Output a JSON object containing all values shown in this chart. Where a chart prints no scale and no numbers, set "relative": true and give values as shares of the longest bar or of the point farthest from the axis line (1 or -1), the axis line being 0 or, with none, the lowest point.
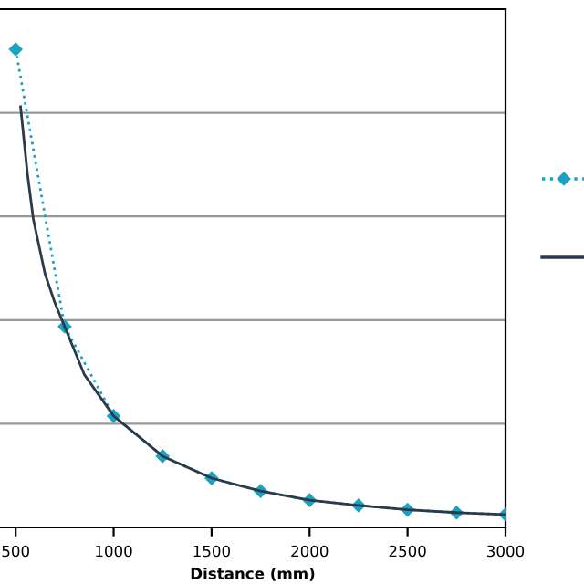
{
  "chart_data": {
    "type": "line",
    "xlabel": "Distance (mm)",
    "relative": true,
    "xlim": [
      420,
      3000
    ],
    "xticks": [
      500,
      1000,
      1500,
      2000,
      2500,
      3000
    ],
    "grid": "y",
    "series": [
      {
        "color": "#1ba1c4",
        "line_style": "dotted",
        "marker": "diamond",
        "x": [
          500,
          750,
          1000,
          1250,
          1500,
          1750,
          2000,
          2250,
          2500,
          2750,
          3000
        ],
        "values": [
          1,
          0.42,
          0.233,
          0.149,
          0.103,
          0.076,
          0.057,
          0.046,
          0.037,
          0.031,
          0.027
        ]
      },
      {
        "color": "#2b3a4a",
        "line_style": "solid",
        "marker": "none",
        "x": [
          525,
          560,
          590,
          650,
          700,
          750,
          850,
          1000,
          1250,
          1500,
          1750,
          2000,
          2250,
          2500,
          2750,
          3000
        ],
        "values": [
          0.88,
          0.74,
          0.645,
          0.53,
          0.47,
          0.42,
          0.32,
          0.233,
          0.149,
          0.103,
          0.076,
          0.057,
          0.046,
          0.037,
          0.031,
          0.027
        ]
      }
    ]
  }
}
